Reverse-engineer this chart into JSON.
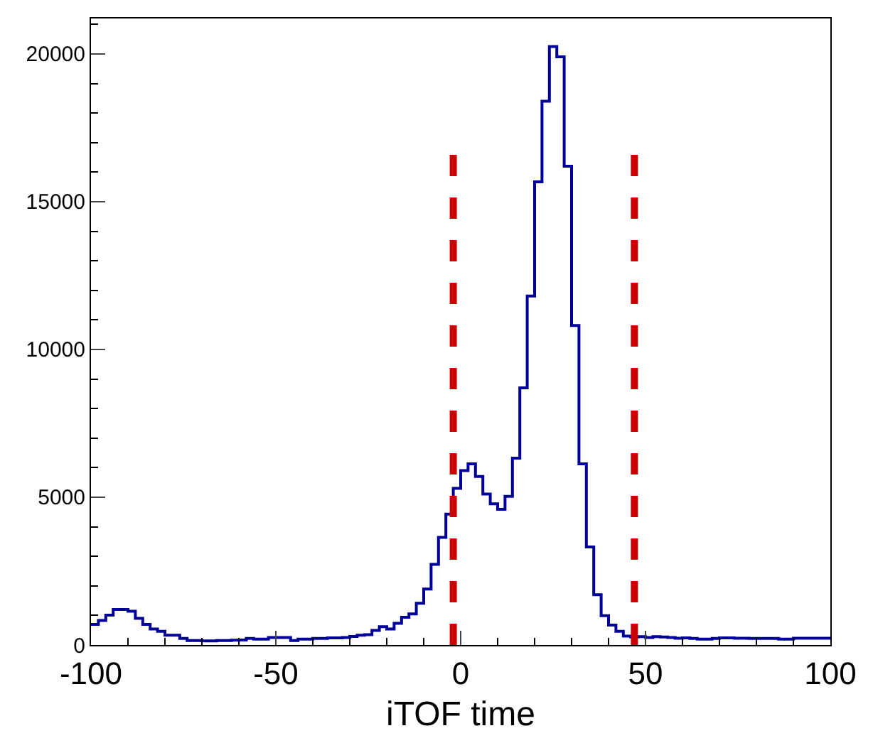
{
  "chart_data": {
    "type": "histogram",
    "xlabel": "iTOF time",
    "bins": [
      -100,
      -98,
      -96,
      -94,
      -92,
      -90,
      -88,
      -86,
      -84,
      -82,
      -80,
      -78,
      -76,
      -74,
      -72,
      -70,
      -68,
      -66,
      -64,
      -62,
      -60,
      -58,
      -56,
      -54,
      -52,
      -50,
      -48,
      -46,
      -44,
      -42,
      -40,
      -38,
      -36,
      -34,
      -32,
      -30,
      -28,
      -26,
      -24,
      -22,
      -20,
      -18,
      -16,
      -14,
      -12,
      -10,
      -8,
      -6,
      -4,
      -2,
      0,
      2,
      4,
      6,
      8,
      10,
      12,
      14,
      16,
      18,
      20,
      22,
      24,
      26,
      28,
      30,
      32,
      34,
      36,
      38,
      40,
      42,
      44,
      46,
      48,
      50,
      52,
      54,
      56,
      58,
      60,
      62,
      64,
      66,
      68,
      70,
      72,
      74,
      76,
      78,
      80,
      82,
      84,
      86,
      88,
      90,
      92,
      94,
      96,
      98,
      100
    ],
    "values": [
      700,
      830,
      1010,
      1200,
      1200,
      1140,
      900,
      700,
      540,
      460,
      330,
      330,
      220,
      150,
      150,
      140,
      140,
      150,
      150,
      160,
      170,
      220,
      200,
      200,
      250,
      250,
      250,
      150,
      200,
      200,
      220,
      220,
      240,
      240,
      250,
      290,
      330,
      350,
      490,
      620,
      540,
      730,
      940,
      1050,
      1410,
      1890,
      2730,
      3640,
      4430,
      5300,
      5900,
      6130,
      5700,
      5110,
      4780,
      4590,
      5030,
      6320,
      8700,
      11810,
      15670,
      18400,
      20250,
      19900,
      16200,
      10810,
      6130,
      3320,
      1700,
      990,
      670,
      460,
      300,
      270,
      280,
      250,
      280,
      270,
      250,
      230,
      240,
      220,
      200,
      200,
      220,
      240,
      240,
      230,
      230,
      220,
      220,
      220,
      220,
      200,
      200,
      230,
      230,
      230,
      230,
      230
    ],
    "color": "#000099",
    "xlim": [
      -100,
      100
    ],
    "xticks": [
      -100,
      -50,
      0,
      50,
      100
    ],
    "ylim": [
      0,
      21200
    ],
    "yticks": [
      0,
      5000,
      10000,
      15000,
      20000
    ],
    "ref_lines": [
      {
        "axis": "x",
        "value": -2,
        "color": "#cc0000",
        "line_style": "dashed"
      },
      {
        "axis": "x",
        "value": 47,
        "color": "#cc0000",
        "line_style": "dashed"
      }
    ]
  }
}
